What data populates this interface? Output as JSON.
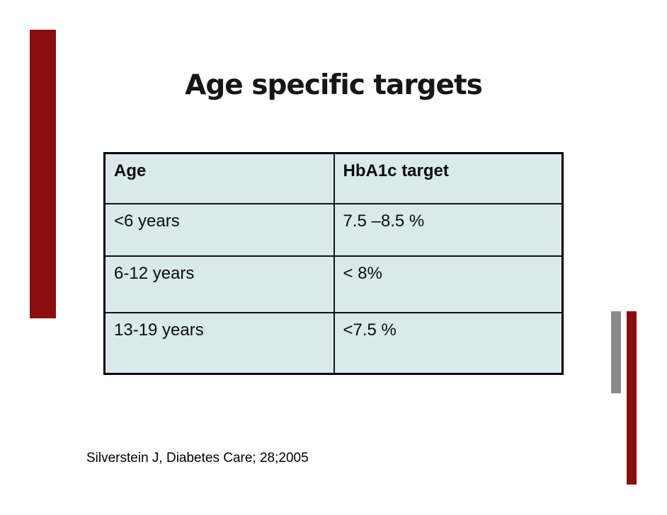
{
  "slide": {
    "title": "Age specific targets",
    "citation": "Silverstein J, Diabetes Care; 28;2005"
  },
  "table": {
    "columns": [
      "Age",
      "HbA1c target"
    ],
    "rows": [
      [
        "<6 years",
        "7.5 –8.5 %"
      ],
      [
        "6-12 years",
        "< 8%"
      ],
      [
        "13-19 years",
        "<7.5 %"
      ]
    ]
  },
  "colors": {
    "accent_red": "#8b0e0e",
    "accent_gray": "#8a8a8a",
    "table_cell_bg": "#d9e9ec",
    "table_border": "#000000",
    "text": "#0d0d0d",
    "background": "#ffffff"
  }
}
